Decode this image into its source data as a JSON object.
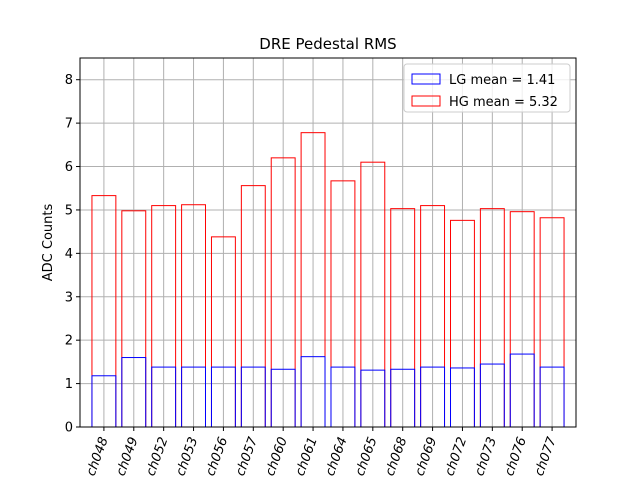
{
  "chart_data": {
    "type": "bar",
    "title": "DRE Pedestal RMS",
    "xlabel": "",
    "ylabel": "ADC Counts",
    "ylim": [
      0,
      8.5
    ],
    "yticks": [
      0,
      1,
      2,
      3,
      4,
      5,
      6,
      7,
      8
    ],
    "grid": true,
    "legend_position": "top-right",
    "categories": [
      "ch048",
      "ch049",
      "ch052",
      "ch053",
      "ch056",
      "ch057",
      "ch060",
      "ch061",
      "ch064",
      "ch065",
      "ch068",
      "ch069",
      "ch072",
      "ch073",
      "ch076",
      "ch077"
    ],
    "series": [
      {
        "name": "LG",
        "legend_label": "LG mean = 1.41",
        "color": "#0000ff",
        "values": [
          1.18,
          1.6,
          1.38,
          1.38,
          1.38,
          1.38,
          1.33,
          1.62,
          1.38,
          1.31,
          1.33,
          1.38,
          1.36,
          1.45,
          1.68,
          1.38
        ]
      },
      {
        "name": "HG",
        "legend_label": "HG mean = 5.32",
        "color": "#ff0000",
        "values": [
          5.33,
          4.98,
          5.1,
          5.12,
          4.38,
          5.56,
          6.2,
          6.78,
          5.67,
          6.1,
          5.03,
          5.1,
          4.76,
          5.03,
          4.96,
          4.82
        ]
      }
    ]
  }
}
